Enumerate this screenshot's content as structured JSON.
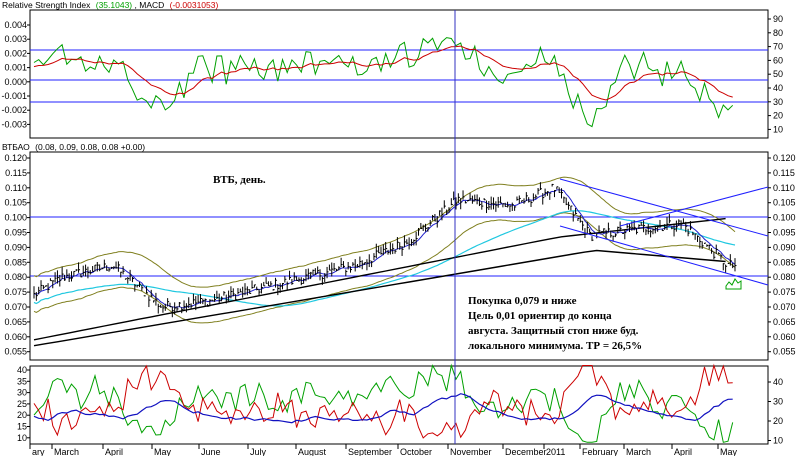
{
  "colors": {
    "rsi": "#00a000",
    "macd_value": "#cc0000",
    "signal_lines": "#2020ff",
    "price_bars": "#000000",
    "bollinger": "#808020",
    "ma_short": "#2020cc",
    "ma_mid": "#20c8e0",
    "ma_long": "#000000",
    "adx": "#1010c0",
    "plus_di": "#00a000",
    "minus_di": "#cc0000",
    "crosshair": "#3030c0"
  },
  "panels": {
    "oscillator": {
      "title_name": "Relative Strength Index",
      "title_rsi_value": "(35.1043)",
      "title_macd_name": "MACD",
      "title_macd_value": "(-0.0031053)",
      "left_ticks": [
        "0.004",
        "0.003",
        "0.002",
        "0.001",
        "0.000",
        "-0.001",
        "-0.002",
        "-0.003"
      ],
      "right_ticks": [
        "90",
        "80",
        "70",
        "60",
        "50",
        "40",
        "30",
        "20",
        "10"
      ]
    },
    "price": {
      "title_name": "ВТБАО",
      "title_values": "(0.08, 0.09, 0.08, 0.08 +0.00)",
      "chart_label": "ВТБ, день.",
      "ticks": [
        "0.120",
        "0.115",
        "0.110",
        "0.105",
        "0.100",
        "0.095",
        "0.090",
        "0.085",
        "0.080",
        "0.075",
        "0.070",
        "0.065",
        "0.060",
        "0.055"
      ],
      "annotation": [
        "Покупка 0,079 и ниже",
        "Цель 0,01  ориентир до конца",
        "августа. Защитный стоп ниже буд.",
        "локального минимума. ТР = 26,5%"
      ]
    },
    "dmi": {
      "left_ticks": [
        "40",
        "35",
        "30",
        "25",
        "20",
        "15",
        "10"
      ],
      "right_ticks": [
        "40",
        "30",
        "20",
        "10"
      ]
    }
  },
  "xaxis": {
    "labels": [
      "ary",
      "March",
      "April",
      "May",
      "June",
      "July",
      "August",
      "September",
      "October",
      "November",
      "December",
      "2011",
      "February",
      "March",
      "April",
      "May"
    ]
  },
  "chart_data": {
    "type": "bar",
    "symbol": "ВТБАО",
    "price_ylim": [
      0.055,
      0.12
    ],
    "price_horizontal_levels": [
      0.1,
      0.08
    ],
    "trend_channel": "descending channel drawn from February peak (~0.112) to May (~0.083)",
    "price_path_keypoints": {
      "x": [
        "Feb",
        "Mar",
        "Apr",
        "May",
        "Jun",
        "Jul",
        "Aug",
        "Sep",
        "Oct",
        "Nov",
        "Dec",
        "2011",
        "Feb",
        "Mar",
        "Apr",
        "May"
      ],
      "close": [
        0.074,
        0.08,
        0.084,
        0.07,
        0.072,
        0.076,
        0.08,
        0.084,
        0.092,
        0.106,
        0.104,
        0.11,
        0.094,
        0.096,
        0.098,
        0.084
      ]
    },
    "rsi_levels": [
      70,
      50,
      30
    ],
    "rsi_ylim": [
      10,
      90
    ],
    "macd_ylim": [
      -0.003,
      0.004
    ],
    "dmi_levels": [
      40,
      30,
      20,
      10
    ]
  }
}
